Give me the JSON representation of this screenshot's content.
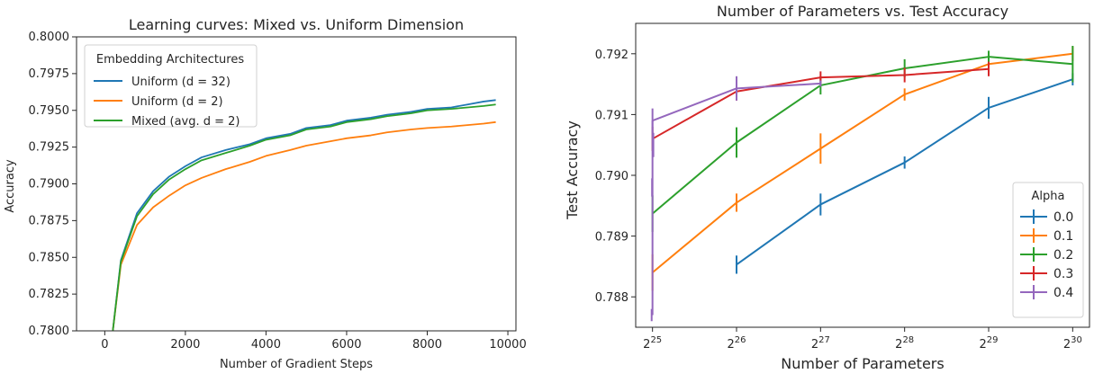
{
  "chart_data": [
    {
      "type": "line",
      "title": "Learning curves: Mixed vs. Uniform Dimension",
      "xlabel": "Number of Gradient Steps",
      "ylabel": "Accuracy",
      "xlim": [
        -700,
        10200
      ],
      "ylim": [
        0.78,
        0.8
      ],
      "x_ticks": [
        0,
        2000,
        4000,
        6000,
        8000,
        10000
      ],
      "y_ticks": [
        0.78,
        0.7825,
        0.785,
        0.7875,
        0.79,
        0.7925,
        0.795,
        0.7975,
        0.8
      ],
      "legend": {
        "title": "Embedding Architectures",
        "placement": "upper-left"
      },
      "x": [
        200,
        400,
        800,
        1200,
        1600,
        2000,
        2400,
        3000,
        3600,
        4000,
        4600,
        5000,
        5600,
        6000,
        6600,
        7000,
        7600,
        8000,
        8600,
        9000,
        9400,
        9700
      ],
      "series": [
        {
          "name": "Uniform (d = 32)",
          "color": "#1f77b4",
          "values": [
            0.78,
            0.7848,
            0.788,
            0.7895,
            0.7905,
            0.7912,
            0.7918,
            0.7923,
            0.7927,
            0.7931,
            0.7934,
            0.7938,
            0.794,
            0.7943,
            0.7945,
            0.7947,
            0.7949,
            0.7951,
            0.7952,
            0.7954,
            0.7956,
            0.7957
          ]
        },
        {
          "name": "Uniform (d = 2)",
          "color": "#ff7f0e",
          "values": [
            0.78,
            0.7845,
            0.7872,
            0.7884,
            0.7892,
            0.7899,
            0.7904,
            0.791,
            0.7915,
            0.7919,
            0.7923,
            0.7926,
            0.7929,
            0.7931,
            0.7933,
            0.7935,
            0.7937,
            0.7938,
            0.7939,
            0.794,
            0.7941,
            0.7942
          ]
        },
        {
          "name": "Mixed (avg. d = 2)",
          "color": "#2ca02c",
          "values": [
            0.78,
            0.7847,
            0.7878,
            0.7893,
            0.7903,
            0.791,
            0.7916,
            0.7921,
            0.7926,
            0.793,
            0.7933,
            0.7937,
            0.7939,
            0.7942,
            0.7944,
            0.7946,
            0.7948,
            0.795,
            0.7951,
            0.7952,
            0.7953,
            0.7954
          ]
        }
      ]
    },
    {
      "type": "line",
      "title": "Number of Parameters vs. Test Accuracy",
      "xlabel": "Number of Parameters",
      "ylabel": "Test Accuracy",
      "x_scale": "log2",
      "x_exponent_lim": [
        24.8,
        30.2
      ],
      "ylim": [
        0.7875,
        0.7925
      ],
      "x_ticks": [
        25,
        26,
        27,
        28,
        29,
        30
      ],
      "y_ticks": [
        0.788,
        0.789,
        0.79,
        0.791,
        0.792
      ],
      "legend": {
        "title": "Alpha",
        "placement": "lower-right"
      },
      "series": [
        {
          "name": "0.0",
          "color": "#1f77b4",
          "points": [
            [
              26,
              0.78853,
              0.00015
            ],
            [
              27,
              0.78952,
              0.00018
            ],
            [
              28,
              0.79021,
              0.0001
            ],
            [
              29,
              0.79111,
              0.00018
            ],
            [
              30,
              0.79158,
              0.0001
            ]
          ]
        },
        {
          "name": "0.1",
          "color": "#ff7f0e",
          "points": [
            [
              25,
              0.7884,
              0.0003
            ],
            [
              26,
              0.78955,
              0.00015
            ],
            [
              27,
              0.79044,
              0.00025
            ],
            [
              28,
              0.79133,
              0.0001
            ],
            [
              29,
              0.79183,
              0.0001
            ],
            [
              30,
              0.792,
              0.00012
            ]
          ]
        },
        {
          "name": "0.2",
          "color": "#2ca02c",
          "points": [
            [
              25,
              0.78937,
              0.0003
            ],
            [
              26,
              0.79054,
              0.00025
            ],
            [
              27,
              0.79148,
              0.00015
            ],
            [
              28,
              0.79176,
              0.00015
            ],
            [
              29,
              0.79195,
              0.0001
            ],
            [
              30,
              0.79183,
              0.0003
            ]
          ]
        },
        {
          "name": "0.3",
          "color": "#d62728",
          "points": [
            [
              25,
              0.7906,
              0.0002
            ],
            [
              26,
              0.79138,
              0.00015
            ],
            [
              27,
              0.79161,
              0.0001
            ],
            [
              28,
              0.79165,
              0.00012
            ],
            [
              29,
              0.79175,
              0.00012
            ]
          ]
        },
        {
          "name": "0.4",
          "color": "#9467bd",
          "points": [
            [
              25,
              0.7909,
              0.0002
            ],
            [
              26,
              0.79143,
              0.0002
            ],
            [
              27,
              0.79151,
              5e-05
            ]
          ]
        }
      ],
      "near_origin_points": [
        {
          "series": "0.4",
          "x": 25.01,
          "y": 0.7905,
          "err": 0.0002
        },
        {
          "series": "0.4",
          "x": 24.995,
          "y": 0.7898,
          "err": 0.00015
        },
        {
          "series": "0.4",
          "x": 24.99,
          "y": 0.7877,
          "err": 0.0001
        }
      ]
    }
  ]
}
